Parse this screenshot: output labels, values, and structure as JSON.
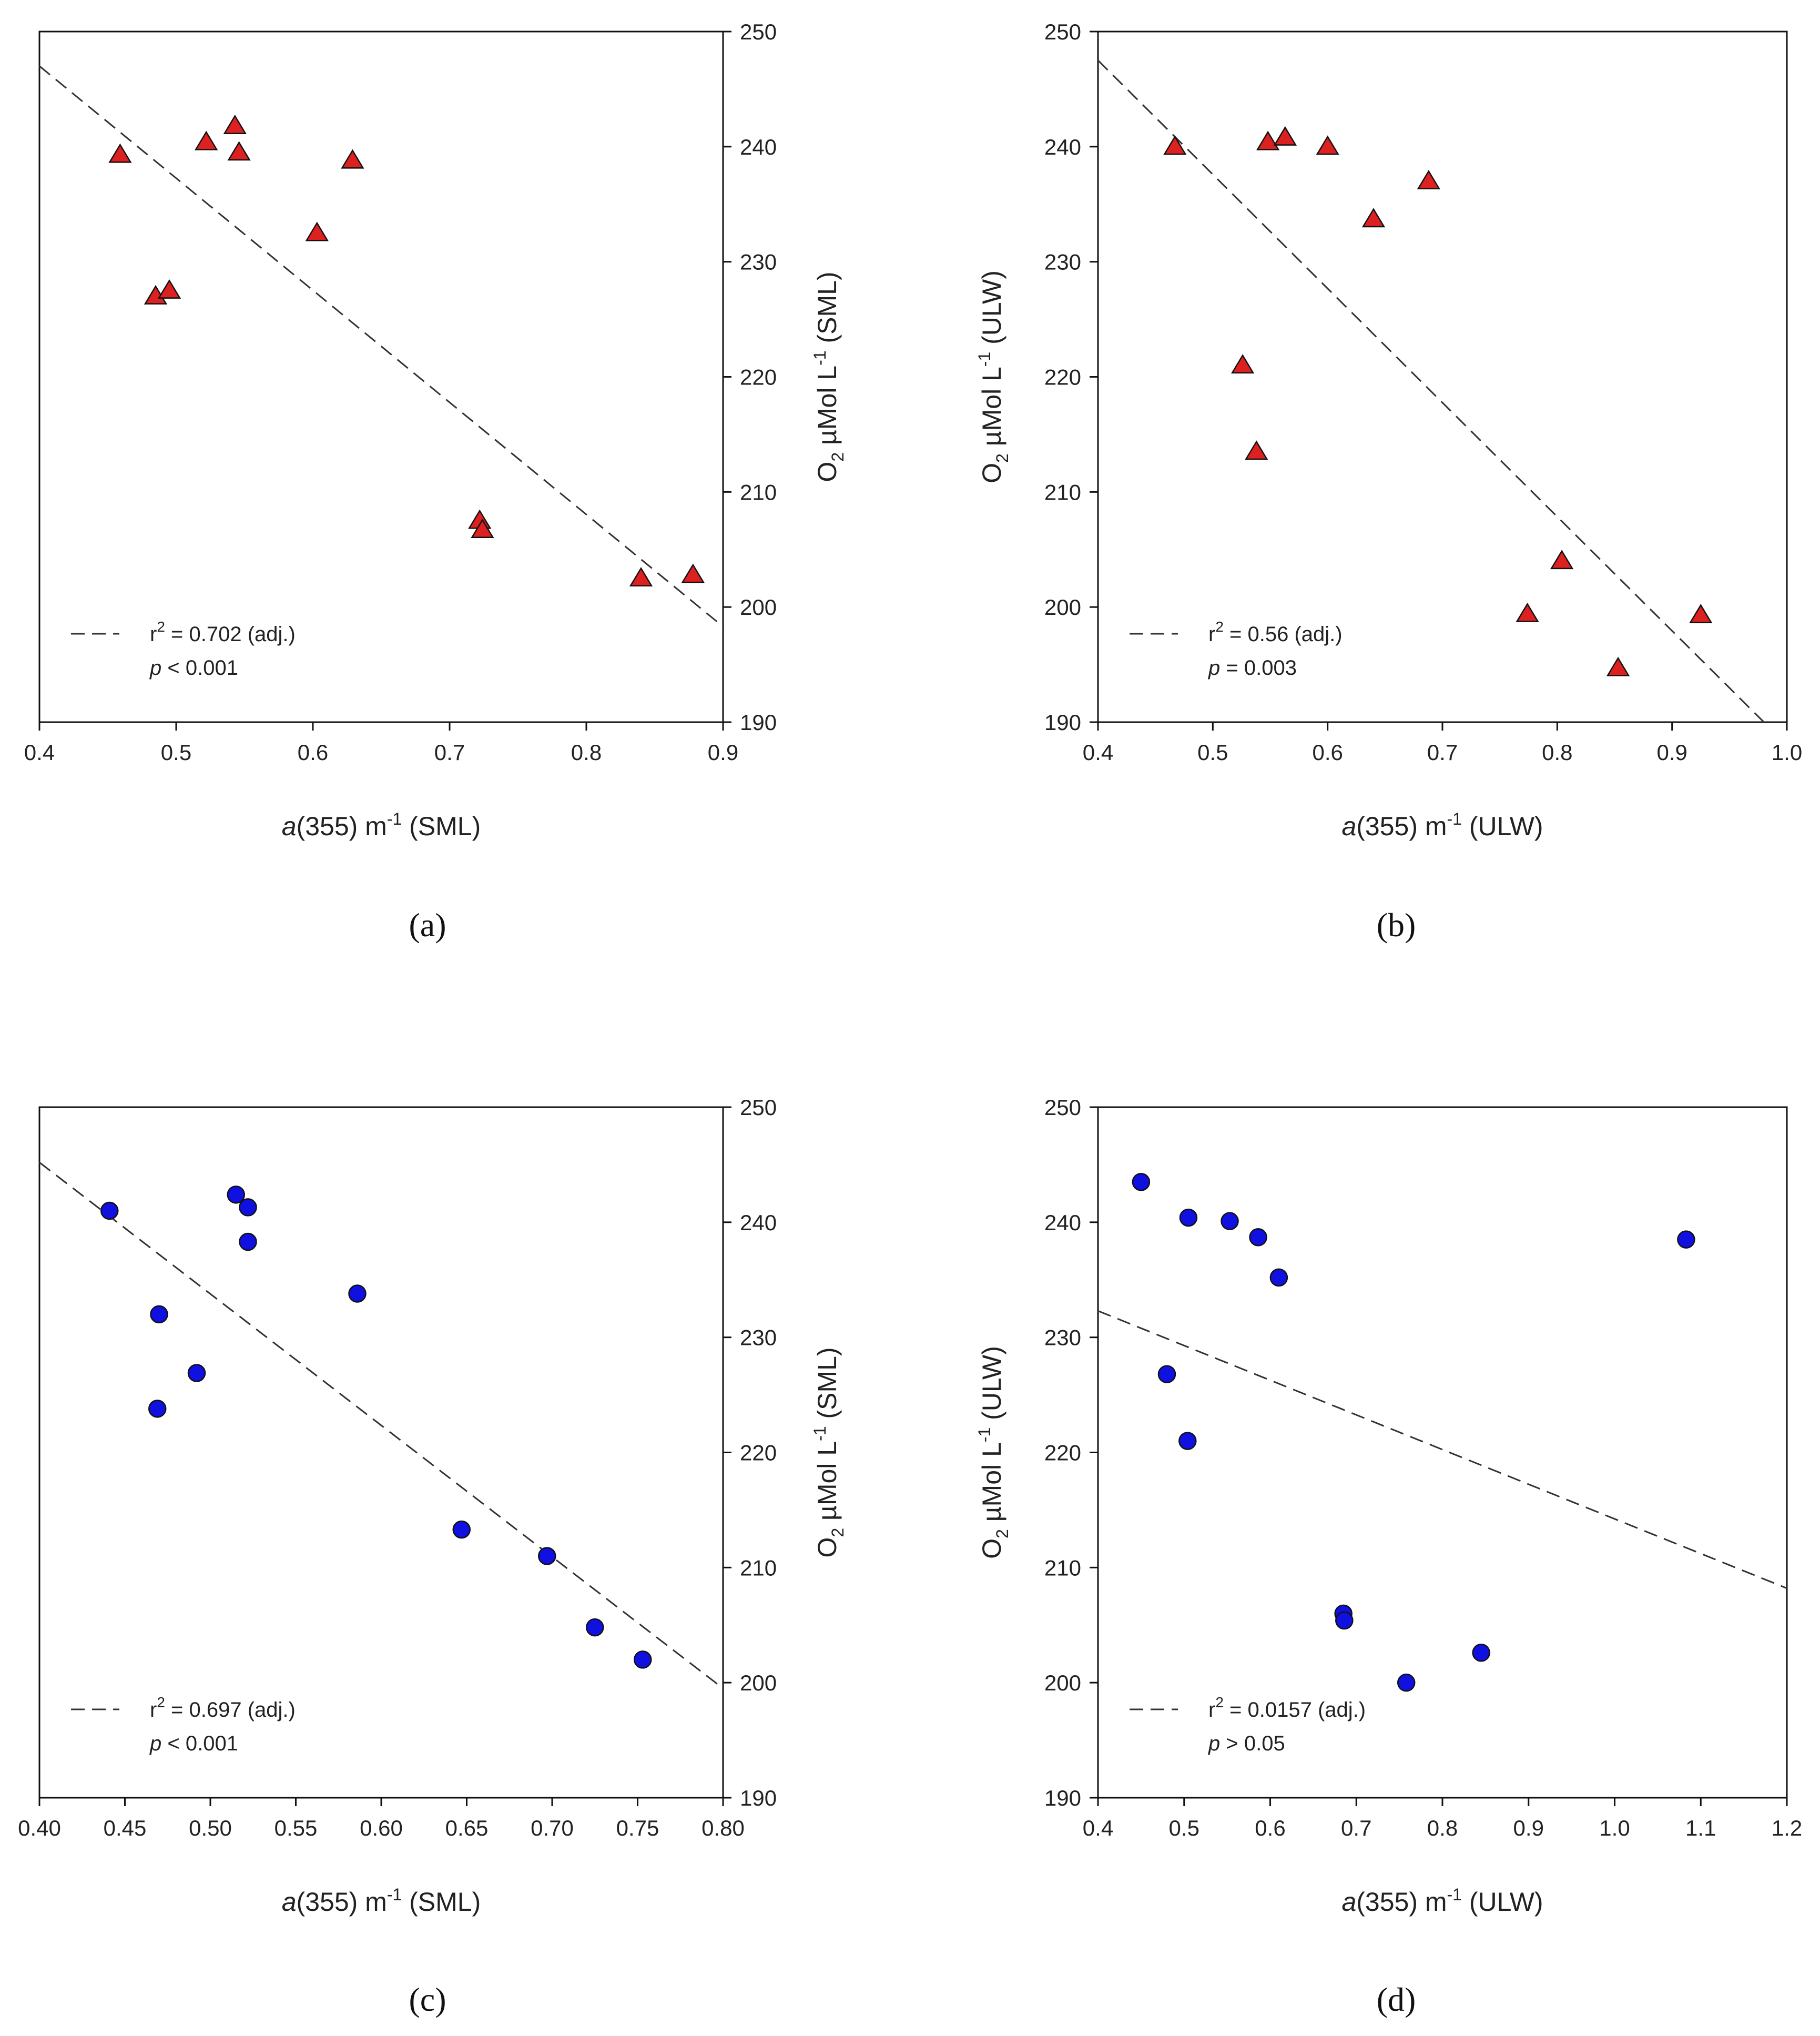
{
  "chart_data": [
    {
      "panel": "(a)",
      "type": "scatter",
      "xlabel": {
        "italic": "a",
        "pre": "(355) m",
        "sup": "-1",
        "post": " (SML)"
      },
      "ylabel": {
        "pre": "O",
        "sub": "2",
        "mid": " µMol L",
        "sup": "-1",
        "post": " (SML)"
      },
      "xlim": [
        0.4,
        0.9
      ],
      "ylim": [
        190,
        250
      ],
      "xticks": [
        "0.4",
        "0.5",
        "0.6",
        "0.7",
        "0.8",
        "0.9"
      ],
      "yticks": [
        "190",
        "200",
        "210",
        "220",
        "230",
        "240",
        "250"
      ],
      "yaxis_side": "right",
      "marker": "triangle",
      "color": "#dd2020",
      "points": [
        [
          0.459,
          239.3
        ],
        [
          0.485,
          227.0
        ],
        [
          0.495,
          227.5
        ],
        [
          0.522,
          240.4
        ],
        [
          0.543,
          241.8
        ],
        [
          0.546,
          239.5
        ],
        [
          0.603,
          232.5
        ],
        [
          0.629,
          238.8
        ],
        [
          0.722,
          207.5
        ],
        [
          0.724,
          206.7
        ],
        [
          0.84,
          202.5
        ],
        [
          0.878,
          202.8
        ]
      ],
      "fit": {
        "x": [
          0.4,
          0.9
        ],
        "y": [
          247.0,
          198.3
        ]
      },
      "legend": {
        "stat": {
          "pre": "r",
          "sup": "2",
          "post": " = 0.702 (adj.)"
        },
        "p": {
          "italic": "p",
          "rest": " < 0.001"
        }
      }
    },
    {
      "panel": "(b)",
      "type": "scatter",
      "xlabel": {
        "italic": "a",
        "pre": "(355) m",
        "sup": "-1",
        "post": " (ULW)"
      },
      "ylabel": {
        "pre": "O",
        "sub": "2",
        "mid": " µMol L",
        "sup": "-1",
        "post": " (ULW)"
      },
      "xlim": [
        0.4,
        1.0
      ],
      "ylim": [
        190,
        250
      ],
      "xticks": [
        "0.4",
        "0.5",
        "0.6",
        "0.7",
        "0.8",
        "0.9",
        "1.0"
      ],
      "yticks": [
        "190",
        "200",
        "210",
        "220",
        "230",
        "240",
        "250"
      ],
      "yaxis_side": "left",
      "marker": "triangle",
      "color": "#dd2020",
      "points": [
        [
          0.467,
          240.0
        ],
        [
          0.526,
          221.0
        ],
        [
          0.538,
          213.5
        ],
        [
          0.548,
          240.4
        ],
        [
          0.563,
          240.8
        ],
        [
          0.6,
          240.0
        ],
        [
          0.64,
          233.7
        ],
        [
          0.688,
          237.0
        ],
        [
          0.774,
          199.4
        ],
        [
          0.804,
          204.0
        ],
        [
          0.853,
          194.7
        ],
        [
          0.925,
          199.3
        ]
      ],
      "fit": {
        "x": [
          0.4,
          0.98
        ],
        "y": [
          247.5,
          190.0
        ]
      },
      "legend": {
        "stat": {
          "pre": "r",
          "sup": "2",
          "post": " = 0.56 (adj.)"
        },
        "p": {
          "italic": "p",
          "rest": " = 0.003"
        }
      }
    },
    {
      "panel": "(c)",
      "type": "scatter",
      "xlabel": {
        "italic": "a",
        "pre": "(355) m",
        "sup": "-1",
        "post": " (SML)"
      },
      "ylabel": {
        "pre": "O",
        "sub": "2",
        "mid": " µMol L",
        "sup": "-1",
        "post": " (SML)"
      },
      "xlim": [
        0.4,
        0.8
      ],
      "ylim": [
        190,
        250
      ],
      "xticks": [
        "0.40",
        "0.45",
        "0.50",
        "0.55",
        "0.60",
        "0.65",
        "0.70",
        "0.75",
        "0.80"
      ],
      "yticks": [
        "190",
        "200",
        "210",
        "220",
        "230",
        "240",
        "250"
      ],
      "yaxis_side": "right",
      "marker": "circle",
      "color": "#1010e0",
      "points": [
        [
          0.441,
          241.0
        ],
        [
          0.469,
          223.8
        ],
        [
          0.47,
          232.0
        ],
        [
          0.492,
          226.9
        ],
        [
          0.515,
          242.4
        ],
        [
          0.522,
          241.3
        ],
        [
          0.522,
          238.3
        ],
        [
          0.586,
          233.8
        ],
        [
          0.647,
          213.3
        ],
        [
          0.697,
          211.0
        ],
        [
          0.725,
          204.8
        ],
        [
          0.753,
          202.0
        ]
      ],
      "fit": {
        "x": [
          0.4,
          0.8
        ],
        "y": [
          245.2,
          199.5
        ]
      },
      "legend": {
        "stat": {
          "pre": "r",
          "sup": "2",
          "post": " = 0.697 (adj.)"
        },
        "p": {
          "italic": "p",
          "rest": " < 0.001"
        }
      }
    },
    {
      "panel": "(d)",
      "type": "scatter",
      "xlabel": {
        "italic": "a",
        "pre": "(355) m",
        "sup": "-1",
        "post": " (ULW)"
      },
      "ylabel": {
        "pre": "O",
        "sub": "2",
        "mid": " µMol L",
        "sup": "-1",
        "post": " (ULW)"
      },
      "xlim": [
        0.4,
        1.2
      ],
      "ylim": [
        190,
        250
      ],
      "xticks": [
        "0.4",
        "0.5",
        "0.6",
        "0.7",
        "0.8",
        "0.9",
        "1.0",
        "1.1",
        "1.2"
      ],
      "yticks": [
        "190",
        "200",
        "210",
        "220",
        "230",
        "240",
        "250"
      ],
      "yaxis_side": "left",
      "marker": "circle",
      "color": "#1010e0",
      "points": [
        [
          0.45,
          243.5
        ],
        [
          0.48,
          226.8
        ],
        [
          0.504,
          221.0
        ],
        [
          0.505,
          240.4
        ],
        [
          0.553,
          240.1
        ],
        [
          0.586,
          238.7
        ],
        [
          0.61,
          235.2
        ],
        [
          0.685,
          206.0
        ],
        [
          0.686,
          205.4
        ],
        [
          0.758,
          200.0
        ],
        [
          0.845,
          202.6
        ],
        [
          1.083,
          238.5
        ]
      ],
      "fit": {
        "x": [
          0.4,
          1.2
        ],
        "y": [
          232.3,
          208.2
        ]
      },
      "legend": {
        "stat": {
          "pre": "r",
          "sup": "2",
          "post": " = 0.0157 (adj.)"
        },
        "p": {
          "italic": "p",
          "rest": " > 0.05"
        }
      }
    }
  ]
}
